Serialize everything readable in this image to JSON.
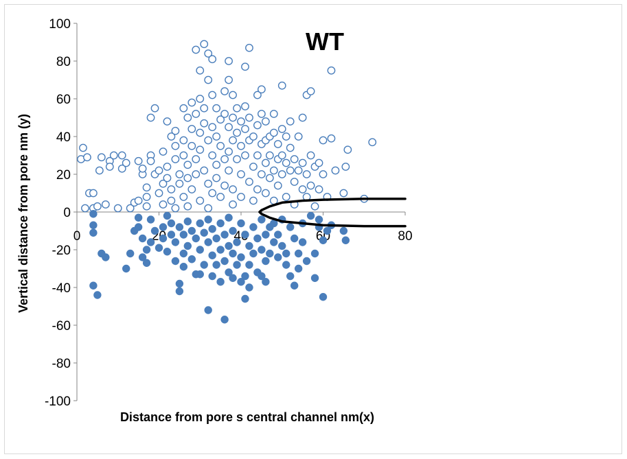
{
  "chart_data": {
    "type": "scatter",
    "title": "WT",
    "xlabel": "Distance from pore s central channel nm(x)",
    "ylabel": "Vertical distance from pore nm (y)",
    "xlim": [
      0,
      80
    ],
    "ylim": [
      -100,
      100
    ],
    "x_ticks": [
      "0",
      "20",
      "40",
      "60",
      "80"
    ],
    "y_ticks": [
      "100",
      "80",
      "60",
      "40",
      "20",
      "0",
      "-20",
      "-40",
      "-60",
      "-80",
      "-100"
    ],
    "grid": false,
    "series": [
      {
        "marker": "open-circle",
        "color": "#4a7ebb",
        "points": [
          [
            1,
            28
          ],
          [
            1.5,
            34
          ],
          [
            2,
            2
          ],
          [
            2.5,
            29
          ],
          [
            3,
            10
          ],
          [
            4,
            10
          ],
          [
            4,
            2
          ],
          [
            5,
            3
          ],
          [
            5.5,
            22
          ],
          [
            6,
            29
          ],
          [
            7,
            4
          ],
          [
            8,
            27
          ],
          [
            8,
            24
          ],
          [
            9,
            30
          ],
          [
            10,
            2
          ],
          [
            11,
            30
          ],
          [
            11,
            23
          ],
          [
            12,
            26
          ],
          [
            13,
            2
          ],
          [
            14,
            5
          ],
          [
            15,
            27
          ],
          [
            15,
            6
          ],
          [
            16,
            20
          ],
          [
            16,
            23
          ],
          [
            17,
            8
          ],
          [
            17,
            3
          ],
          [
            17,
            13
          ],
          [
            18,
            30
          ],
          [
            18,
            50
          ],
          [
            18,
            27
          ],
          [
            19,
            55
          ],
          [
            19,
            20
          ],
          [
            20,
            22
          ],
          [
            20,
            10
          ],
          [
            21,
            4
          ],
          [
            21,
            32
          ],
          [
            21,
            15
          ],
          [
            22,
            48
          ],
          [
            22,
            24
          ],
          [
            22,
            18
          ],
          [
            23,
            40
          ],
          [
            23,
            12
          ],
          [
            23,
            6
          ],
          [
            24,
            2
          ],
          [
            24,
            35
          ],
          [
            24,
            43
          ],
          [
            24,
            28
          ],
          [
            25,
            20
          ],
          [
            25,
            15
          ],
          [
            26,
            38
          ],
          [
            26,
            55
          ],
          [
            26,
            8
          ],
          [
            26,
            30
          ],
          [
            27,
            50
          ],
          [
            27,
            25
          ],
          [
            27,
            18
          ],
          [
            27,
            3
          ],
          [
            28,
            58
          ],
          [
            28,
            44
          ],
          [
            28,
            35
          ],
          [
            28,
            12
          ],
          [
            29,
            86
          ],
          [
            29,
            52
          ],
          [
            29,
            28
          ],
          [
            29,
            20
          ],
          [
            30,
            75
          ],
          [
            30,
            60
          ],
          [
            30,
            42
          ],
          [
            30,
            33
          ],
          [
            30,
            6
          ],
          [
            31,
            89
          ],
          [
            31,
            55
          ],
          [
            31,
            47
          ],
          [
            31,
            22
          ],
          [
            32,
            84
          ],
          [
            32,
            70
          ],
          [
            32,
            38
          ],
          [
            32,
            15
          ],
          [
            32,
            2
          ],
          [
            33,
            81
          ],
          [
            33,
            62
          ],
          [
            33,
            45
          ],
          [
            33,
            30
          ],
          [
            33,
            10
          ],
          [
            34,
            55
          ],
          [
            34,
            40
          ],
          [
            34,
            25
          ],
          [
            34,
            18
          ],
          [
            35,
            49
          ],
          [
            35,
            35
          ],
          [
            35,
            8
          ],
          [
            36,
            64
          ],
          [
            36,
            52
          ],
          [
            36,
            28
          ],
          [
            36,
            14
          ],
          [
            37,
            80
          ],
          [
            37,
            70
          ],
          [
            37,
            45
          ],
          [
            37,
            32
          ],
          [
            37,
            22
          ],
          [
            38,
            62
          ],
          [
            38,
            50
          ],
          [
            38,
            38
          ],
          [
            38,
            12
          ],
          [
            38,
            4
          ],
          [
            39,
            55
          ],
          [
            39,
            42
          ],
          [
            39,
            28
          ],
          [
            40,
            48
          ],
          [
            40,
            35
          ],
          [
            40,
            20
          ],
          [
            40,
            8
          ],
          [
            41,
            77
          ],
          [
            41,
            56
          ],
          [
            41,
            44
          ],
          [
            41,
            30
          ],
          [
            42,
            87
          ],
          [
            42,
            50
          ],
          [
            42,
            38
          ],
          [
            42,
            16
          ],
          [
            43,
            40
          ],
          [
            43,
            24
          ],
          [
            43,
            6
          ],
          [
            44,
            62
          ],
          [
            44,
            46
          ],
          [
            44,
            30
          ],
          [
            44,
            12
          ],
          [
            45,
            65
          ],
          [
            45,
            52
          ],
          [
            45,
            36
          ],
          [
            45,
            20
          ],
          [
            46,
            48
          ],
          [
            46,
            38
          ],
          [
            46,
            26
          ],
          [
            46,
            10
          ],
          [
            47,
            40
          ],
          [
            47,
            30
          ],
          [
            47,
            18
          ],
          [
            48,
            52
          ],
          [
            48,
            42
          ],
          [
            48,
            22
          ],
          [
            48,
            6
          ],
          [
            49,
            36
          ],
          [
            49,
            28
          ],
          [
            49,
            14
          ],
          [
            50,
            67
          ],
          [
            50,
            44
          ],
          [
            50,
            30
          ],
          [
            50,
            20
          ],
          [
            51,
            40
          ],
          [
            51,
            26
          ],
          [
            51,
            8
          ],
          [
            52,
            48
          ],
          [
            52,
            34
          ],
          [
            52,
            22
          ],
          [
            53,
            28
          ],
          [
            53,
            16
          ],
          [
            53,
            4
          ],
          [
            54,
            40
          ],
          [
            54,
            22
          ],
          [
            55,
            50
          ],
          [
            55,
            26
          ],
          [
            55,
            12
          ],
          [
            56,
            62
          ],
          [
            56,
            20
          ],
          [
            56,
            8
          ],
          [
            57,
            64
          ],
          [
            57,
            30
          ],
          [
            57,
            14
          ],
          [
            58,
            24
          ],
          [
            58,
            3
          ],
          [
            59,
            26
          ],
          [
            59,
            12
          ],
          [
            60,
            38
          ],
          [
            60,
            20
          ],
          [
            61,
            8
          ],
          [
            62,
            75
          ],
          [
            62,
            39
          ],
          [
            63,
            22
          ],
          [
            65,
            10
          ],
          [
            65.5,
            24
          ],
          [
            66,
            33
          ],
          [
            70,
            7
          ],
          [
            72,
            37
          ]
        ]
      },
      {
        "marker": "filled-circle",
        "color": "#4a7ebb",
        "points": [
          [
            4,
            -1
          ],
          [
            4,
            -7
          ],
          [
            4,
            -11
          ],
          [
            4,
            -39
          ],
          [
            5,
            -44
          ],
          [
            6,
            -22
          ],
          [
            7,
            -24
          ],
          [
            12,
            -30
          ],
          [
            13,
            -22
          ],
          [
            14,
            -10
          ],
          [
            15,
            -3
          ],
          [
            15,
            -8
          ],
          [
            16,
            -24
          ],
          [
            16,
            -14
          ],
          [
            17,
            -20
          ],
          [
            17,
            -27
          ],
          [
            18,
            -4
          ],
          [
            18,
            -16
          ],
          [
            19,
            -10
          ],
          [
            20,
            -19
          ],
          [
            21,
            -8
          ],
          [
            21,
            -14
          ],
          [
            22,
            -2
          ],
          [
            22,
            -21
          ],
          [
            23,
            -12
          ],
          [
            23,
            -6
          ],
          [
            24,
            -16
          ],
          [
            24,
            -26
          ],
          [
            25,
            -38
          ],
          [
            25,
            -42
          ],
          [
            25,
            -8
          ],
          [
            26,
            -12
          ],
          [
            26,
            -22
          ],
          [
            26,
            -29
          ],
          [
            27,
            -5
          ],
          [
            27,
            -18
          ],
          [
            28,
            -10
          ],
          [
            28,
            -25
          ],
          [
            29,
            -33
          ],
          [
            29,
            -14
          ],
          [
            30,
            -6
          ],
          [
            30,
            -20
          ],
          [
            30,
            -33
          ],
          [
            31,
            -11
          ],
          [
            31,
            -28
          ],
          [
            32,
            -52
          ],
          [
            32,
            -16
          ],
          [
            32,
            -4
          ],
          [
            33,
            -23
          ],
          [
            33,
            -34
          ],
          [
            33,
            -9
          ],
          [
            34,
            -14
          ],
          [
            34,
            -28
          ],
          [
            35,
            -20
          ],
          [
            35,
            -37
          ],
          [
            35,
            -6
          ],
          [
            36,
            -57
          ],
          [
            36,
            -12
          ],
          [
            36,
            -26
          ],
          [
            37,
            -18
          ],
          [
            37,
            -32
          ],
          [
            37,
            -3
          ],
          [
            38,
            -22
          ],
          [
            38,
            -10
          ],
          [
            38,
            -35
          ],
          [
            39,
            -16
          ],
          [
            39,
            -28
          ],
          [
            40,
            -37
          ],
          [
            40,
            -6
          ],
          [
            40,
            -24
          ],
          [
            41,
            -12
          ],
          [
            41,
            -34
          ],
          [
            41,
            -46
          ],
          [
            42,
            -18
          ],
          [
            42,
            -28
          ],
          [
            42,
            -40
          ],
          [
            43,
            -8
          ],
          [
            43,
            -22
          ],
          [
            44,
            -14
          ],
          [
            44,
            -32
          ],
          [
            45,
            -20
          ],
          [
            45,
            -34
          ],
          [
            45,
            -4
          ],
          [
            46,
            -12
          ],
          [
            46,
            -26
          ],
          [
            46,
            -37
          ],
          [
            47,
            -8
          ],
          [
            47,
            -22
          ],
          [
            48,
            -16
          ],
          [
            48,
            -6
          ],
          [
            49,
            -12
          ],
          [
            49,
            -24
          ],
          [
            50,
            -4
          ],
          [
            50,
            -18
          ],
          [
            51,
            -22
          ],
          [
            51,
            -28
          ],
          [
            52,
            -34
          ],
          [
            52,
            -8
          ],
          [
            53,
            -14
          ],
          [
            53,
            -39
          ],
          [
            54,
            -22
          ],
          [
            54,
            -30
          ],
          [
            55,
            -16
          ],
          [
            55,
            -6
          ],
          [
            56,
            -26
          ],
          [
            57,
            -2
          ],
          [
            58,
            -35
          ],
          [
            58,
            -22
          ],
          [
            59,
            -4
          ],
          [
            59,
            -8
          ],
          [
            60,
            -45
          ],
          [
            60,
            -15
          ],
          [
            61,
            -10
          ],
          [
            62,
            -7
          ],
          [
            65,
            -10
          ],
          [
            65.5,
            -15
          ]
        ]
      }
    ],
    "boundary_curve": {
      "color": "#000000",
      "x_points": [
        80,
        70,
        60,
        55,
        50,
        47,
        45,
        44.5,
        45,
        47,
        50,
        55,
        60,
        70,
        80
      ],
      "y_points": [
        7,
        7,
        6.5,
        6,
        5,
        3,
        1,
        0,
        -1,
        -3,
        -5,
        -6,
        -7,
        -7.5,
        -7.5
      ]
    }
  }
}
